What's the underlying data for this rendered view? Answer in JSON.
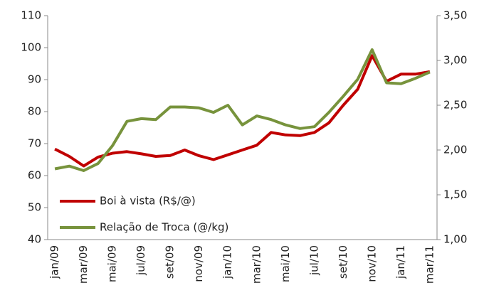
{
  "chart_data": {
    "type": "line",
    "categories": [
      "jan/09",
      null,
      "mar/09",
      null,
      "mai/09",
      null,
      "jul/09",
      null,
      "set/09",
      null,
      "nov/09",
      null,
      "jan/10",
      null,
      "mar/10",
      null,
      "mai/10",
      null,
      "jul/10",
      null,
      "set/10",
      null,
      "nov/10",
      null,
      "jan/11",
      null,
      "mar/11"
    ],
    "series": [
      {
        "name": "Boi à vista (R$/@)",
        "color": "#c00000",
        "axis": "y",
        "values": [
          68.3,
          66,
          63,
          65.8,
          67,
          67.5,
          66.8,
          66,
          66.3,
          68,
          66.2,
          65,
          66.5,
          68,
          69.5,
          73.5,
          72.7,
          72.5,
          73.5,
          76.5,
          82,
          87,
          97.5,
          89.5,
          91.7,
          91.7,
          92.5
        ]
      },
      {
        "name": "Relação de Troca (@/kg)",
        "color": "#77933c",
        "axis": "y2",
        "values": [
          1.79,
          1.82,
          1.77,
          1.85,
          2.05,
          2.32,
          2.35,
          2.34,
          2.48,
          2.48,
          2.47,
          2.42,
          2.5,
          2.28,
          2.38,
          2.34,
          2.28,
          2.24,
          2.26,
          2.42,
          2.6,
          2.79,
          3.12,
          2.75,
          2.74,
          2.8,
          2.87
        ]
      }
    ],
    "ylim": [
      40,
      110
    ],
    "yticks": [
      40,
      50,
      60,
      70,
      80,
      90,
      100,
      110
    ],
    "y2lim": [
      1.0,
      3.5
    ],
    "y2ticks": [
      {
        "value": 1.0,
        "label": "1,00"
      },
      {
        "value": 1.5,
        "label": "1,50"
      },
      {
        "value": 2.0,
        "label": "2,00"
      },
      {
        "value": 2.5,
        "label": "2,50"
      },
      {
        "value": 3.0,
        "label": "3,00"
      },
      {
        "value": 3.5,
        "label": "3,50"
      }
    ],
    "grid": false,
    "legend": "lower-left"
  }
}
